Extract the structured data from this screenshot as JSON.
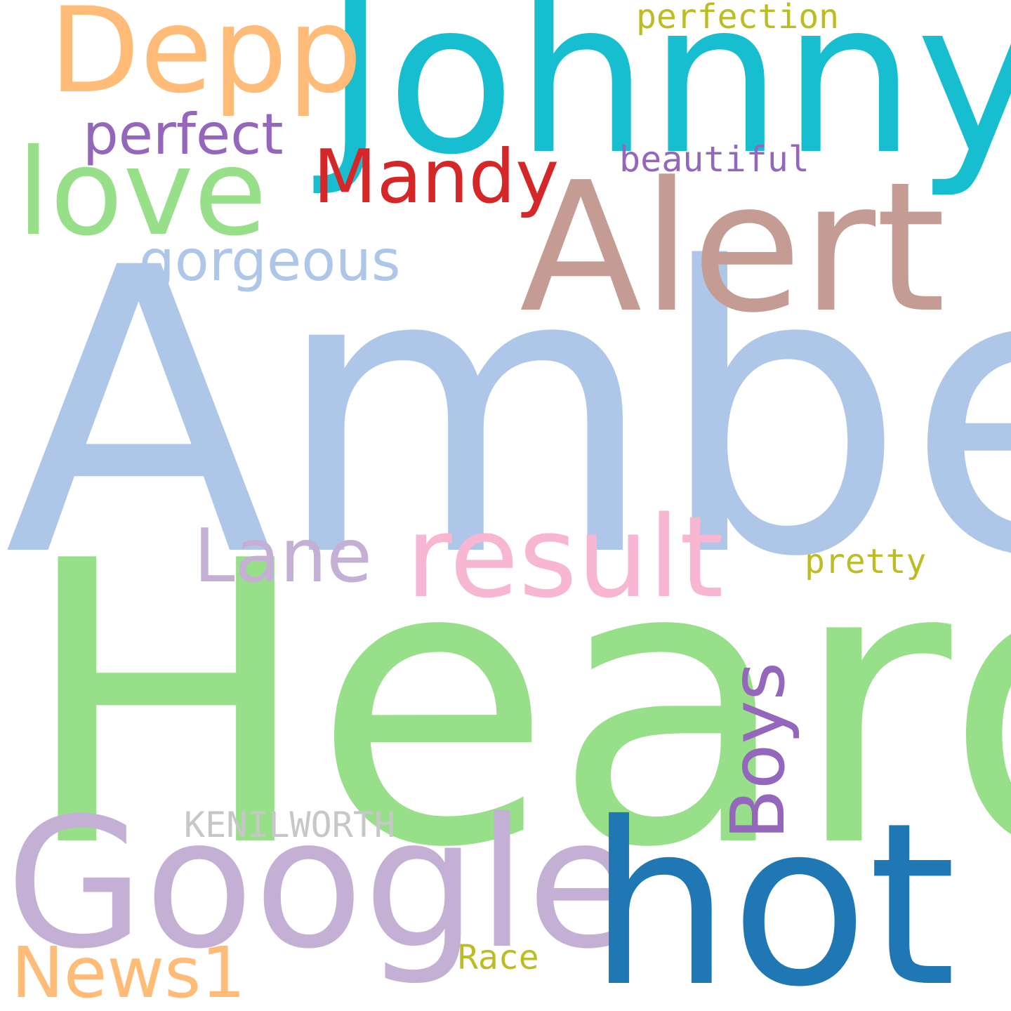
{
  "words": {
    "amber": {
      "text": "Amber",
      "color": "#aec7e8"
    },
    "heard": {
      "text": "Heard",
      "color": "#98df8a"
    },
    "johnny": {
      "text": "Johnny",
      "color": "#17becf"
    },
    "alert": {
      "text": "Alert",
      "color": "#c49c94"
    },
    "depp": {
      "text": "Depp",
      "color": "#ffbb78"
    },
    "love": {
      "text": "love",
      "color": "#98df8a"
    },
    "google": {
      "text": "Google",
      "color": "#c5b0d5"
    },
    "hot": {
      "text": "hot",
      "color": "#1f77b4"
    },
    "result": {
      "text": "result",
      "color": "#f7b6d2"
    },
    "mandy": {
      "text": "Mandy",
      "color": "#d62728"
    },
    "perfect": {
      "text": "perfect",
      "color": "#9467bd"
    },
    "gorgeous": {
      "text": "gorgeous",
      "color": "#aec7e8"
    },
    "lane": {
      "text": "Lane",
      "color": "#c5b0d5"
    },
    "boys": {
      "text": "Boys",
      "color": "#9467bd"
    },
    "news1": {
      "text": "News1",
      "color": "#ffbb78"
    },
    "kenilworth": {
      "text": "KENILWORTH",
      "color": "#c7c7c7"
    },
    "perfection": {
      "text": "perfection",
      "color": "#bcbd22"
    },
    "beautiful": {
      "text": "beautiful",
      "color": "#9467bd"
    },
    "pretty": {
      "text": "pretty",
      "color": "#bcbd22"
    },
    "race": {
      "text": "Race",
      "color": "#bcbd22"
    }
  }
}
